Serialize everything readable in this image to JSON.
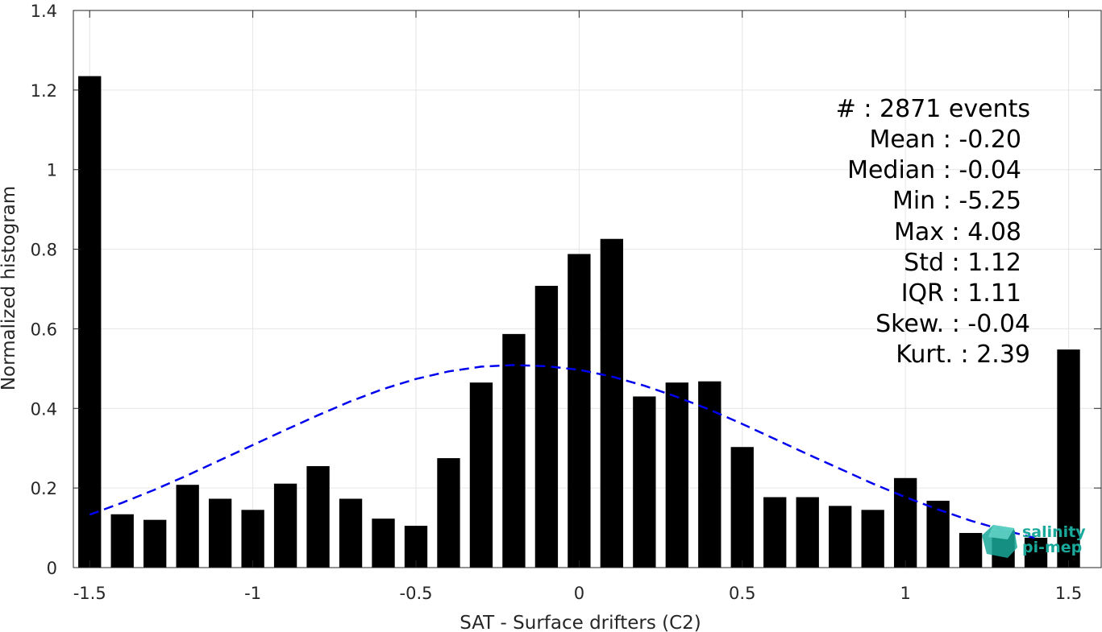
{
  "chart_data": {
    "type": "bar",
    "xlabel": "SAT - Surface drifters (C2)",
    "ylabel": "Normalized histogram",
    "xlim": [
      -1.55,
      1.6
    ],
    "ylim": [
      0,
      1.4
    ],
    "grid": true,
    "x_ticks": [
      "-1.5",
      "-1",
      "-0.5",
      "0",
      "0.5",
      "1",
      "1.5"
    ],
    "x_tick_values": [
      -1.5,
      -1,
      -0.5,
      0,
      0.5,
      1,
      1.5
    ],
    "y_ticks": [
      "0",
      "0.2",
      "0.4",
      "0.6",
      "0.8",
      "1",
      "1.2",
      "1.4"
    ],
    "y_tick_values": [
      0,
      0.2,
      0.4,
      0.6,
      0.8,
      1,
      1.2,
      1.4
    ],
    "bar_color": "#000000",
    "fit_color": "#0000ee",
    "series": [
      {
        "x": [
          -1.5,
          -1.4,
          -1.3,
          -1.2,
          -1.1,
          -1.0,
          -0.9,
          -0.8,
          -0.7,
          -0.6,
          -0.5,
          -0.4,
          -0.3,
          -0.2,
          -0.1,
          0.0,
          0.1,
          0.2,
          0.3,
          0.4,
          0.5,
          0.6,
          0.7,
          0.8,
          0.9,
          1.0,
          1.1,
          1.2,
          1.3,
          1.4,
          1.5
        ],
        "values": [
          1.235,
          0.134,
          0.12,
          0.208,
          0.173,
          0.145,
          0.211,
          0.255,
          0.173,
          0.123,
          0.105,
          0.275,
          0.465,
          0.587,
          0.708,
          0.788,
          0.826,
          0.43,
          0.465,
          0.468,
          0.303,
          0.177,
          0.177,
          0.155,
          0.145,
          0.225,
          0.168,
          0.087,
          0.093,
          0.075,
          0.548
        ]
      }
    ],
    "fit": {
      "style": "dashed",
      "x": [
        -1.5,
        -1.4,
        -1.3,
        -1.2,
        -1.1,
        -1.0,
        -0.9,
        -0.8,
        -0.7,
        -0.6,
        -0.5,
        -0.4,
        -0.3,
        -0.2,
        -0.1,
        0.0,
        0.1,
        0.2,
        0.3,
        0.4,
        0.5,
        0.6,
        0.7,
        0.8,
        0.9,
        1.0,
        1.1,
        1.2,
        1.3,
        1.4
      ],
      "y": [
        0.133,
        0.163,
        0.196,
        0.232,
        0.27,
        0.308,
        0.346,
        0.383,
        0.418,
        0.449,
        0.474,
        0.493,
        0.505,
        0.509,
        0.506,
        0.497,
        0.48,
        0.457,
        0.429,
        0.397,
        0.361,
        0.323,
        0.285,
        0.248,
        0.211,
        0.177,
        0.146,
        0.118,
        0.094,
        0.074
      ]
    },
    "annotations": [
      "#  : 2871 events",
      "Mean : -0.20",
      "Median : -0.04",
      "Min : -5.25",
      "Max : 4.08",
      "Std : 1.12",
      "IQR : 1.11",
      "Skew. : -0.04",
      "Kurt. : 2.39"
    ],
    "logo": {
      "line1": "salinity",
      "line2": "pi-mep",
      "color": "#1aa89a"
    }
  }
}
